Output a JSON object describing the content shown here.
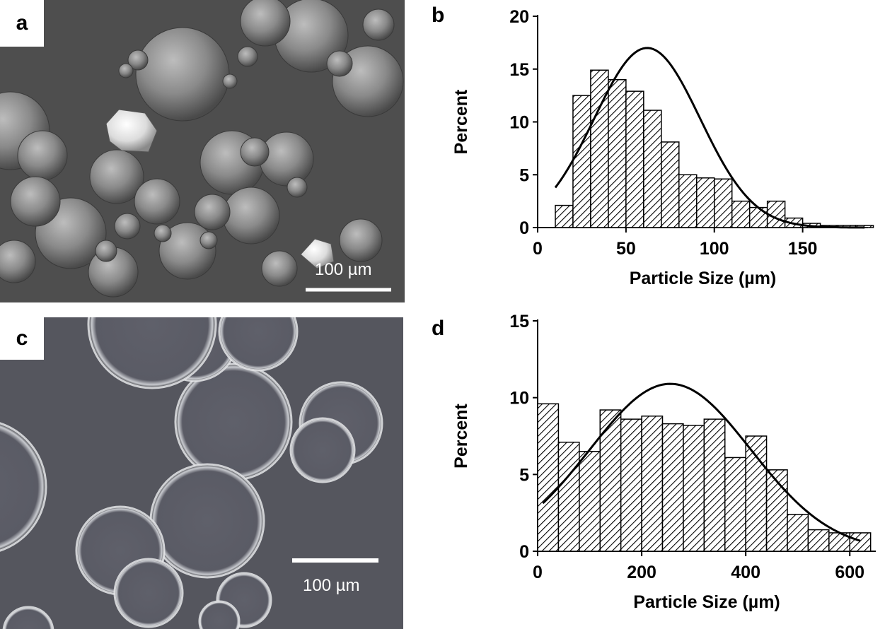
{
  "panels": {
    "a": {
      "label": "a",
      "scale_bar": "100 µm"
    },
    "b": {
      "label": "b"
    },
    "c": {
      "label": "c",
      "scale_bar": "100 µm"
    },
    "d": {
      "label": "d"
    }
  },
  "chart_data": [
    {
      "type": "bar",
      "panel": "b",
      "xlabel": "Particle Size (µm)",
      "ylabel": "Percent",
      "xlim": [
        0,
        187
      ],
      "ylim": [
        0,
        20
      ],
      "xticks": [
        0,
        50,
        100,
        150
      ],
      "yticks": [
        0,
        5,
        10,
        15,
        20
      ],
      "bin_width": 10,
      "bins": [
        {
          "x": 15,
          "value": 2.1
        },
        {
          "x": 25,
          "value": 12.5
        },
        {
          "x": 35,
          "value": 14.9
        },
        {
          "x": 45,
          "value": 14.0
        },
        {
          "x": 55,
          "value": 12.9
        },
        {
          "x": 65,
          "value": 11.1
        },
        {
          "x": 75,
          "value": 8.1
        },
        {
          "x": 85,
          "value": 5.0
        },
        {
          "x": 95,
          "value": 4.7
        },
        {
          "x": 105,
          "value": 4.6
        },
        {
          "x": 115,
          "value": 2.5
        },
        {
          "x": 125,
          "value": 1.9
        },
        {
          "x": 135,
          "value": 2.5
        },
        {
          "x": 145,
          "value": 0.9
        },
        {
          "x": 155,
          "value": 0.4
        },
        {
          "x": 165,
          "value": 0.2
        },
        {
          "x": 175,
          "value": 0.2
        },
        {
          "x": 185,
          "value": 0.2
        }
      ],
      "fit": {
        "type": "normal",
        "mean": 62,
        "sd": 30,
        "peak": 17,
        "x_start": 10,
        "x_end": 185
      },
      "bar_pattern": "diagonal-hatch"
    },
    {
      "type": "bar",
      "panel": "d",
      "xlabel": "Particle Size (µm)",
      "ylabel": "Percent",
      "xlim": [
        0,
        650
      ],
      "ylim": [
        0,
        15
      ],
      "xticks": [
        0,
        200,
        400,
        600
      ],
      "yticks": [
        0,
        5,
        10,
        15
      ],
      "bin_width": 40,
      "bins": [
        {
          "x": 20,
          "value": 9.6
        },
        {
          "x": 60,
          "value": 7.1
        },
        {
          "x": 100,
          "value": 6.5
        },
        {
          "x": 140,
          "value": 9.2
        },
        {
          "x": 180,
          "value": 8.6
        },
        {
          "x": 220,
          "value": 8.8
        },
        {
          "x": 260,
          "value": 8.3
        },
        {
          "x": 300,
          "value": 8.2
        },
        {
          "x": 340,
          "value": 8.6
        },
        {
          "x": 380,
          "value": 6.1
        },
        {
          "x": 420,
          "value": 7.5
        },
        {
          "x": 460,
          "value": 5.3
        },
        {
          "x": 500,
          "value": 2.4
        },
        {
          "x": 540,
          "value": 1.4
        },
        {
          "x": 580,
          "value": 1.2
        },
        {
          "x": 620,
          "value": 1.2
        }
      ],
      "fit": {
        "type": "normal",
        "mean": 255,
        "sd": 155,
        "peak": 10.9,
        "x_start": 10,
        "x_end": 620
      },
      "bar_pattern": "diagonal-hatch"
    }
  ]
}
